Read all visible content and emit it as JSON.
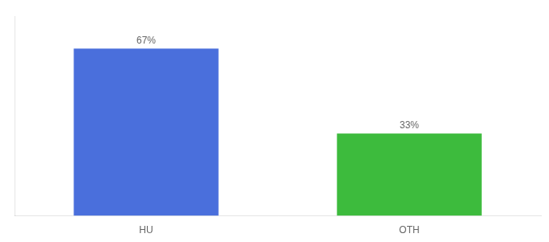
{
  "chart_data": {
    "type": "bar",
    "categories": [
      "HU",
      "OTH"
    ],
    "values": [
      67,
      33
    ],
    "value_labels": [
      "67%",
      "33%"
    ],
    "colors": [
      "#4a6fdc",
      "#3dbb3d"
    ],
    "ylim": [
      0,
      80
    ],
    "data_labels": true,
    "grid": false,
    "tick_labels": "x"
  }
}
